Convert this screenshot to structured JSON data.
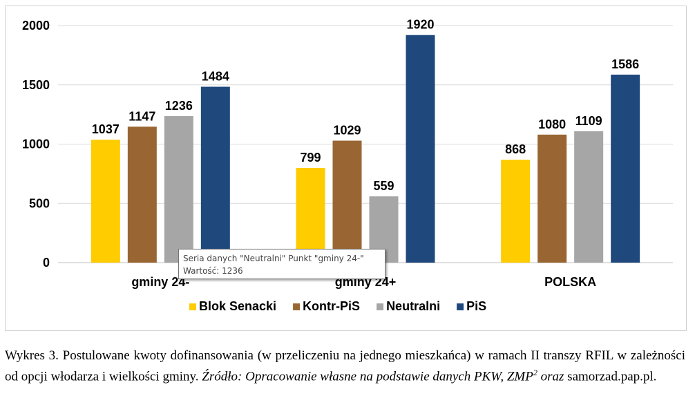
{
  "chart_data": {
    "type": "bar",
    "categories": [
      "gminy 24-",
      "gminy 24+",
      "POLSKA"
    ],
    "series": [
      {
        "name": "Blok Senacki",
        "values": [
          1037,
          799,
          868
        ],
        "color": "#FFCC00"
      },
      {
        "name": "Kontr-PiS",
        "values": [
          1147,
          1029,
          1080
        ],
        "color": "#996633"
      },
      {
        "name": "Neutralni",
        "values": [
          1236,
          559,
          1109
        ],
        "color": "#A6A6A6"
      },
      {
        "name": "PiS",
        "values": [
          1484,
          1920,
          1586
        ],
        "color": "#1F497D"
      }
    ],
    "yticks": [
      0,
      500,
      1000,
      1500,
      2000
    ],
    "ylim": [
      0,
      2000
    ],
    "grid": true,
    "legend_position": "bottom"
  },
  "tooltip": {
    "line1": "Seria danych \"Neutralni\" Punkt \"gminy 24-\"",
    "line2": "Wartość: 1236"
  },
  "caption": {
    "part1": "Wykres 3. Postulowane kwoty dofinansowania (w przeliczeniu na jednego mieszkańca) w ramach II transzy RFIL w zależności od opcji włodarza i wielkości gminy. ",
    "source_italic": "Źródło: Opracowanie własne na podstawie danych PKW, ZMP",
    "superscript": "2",
    "oraz": " oraz",
    "site": " samorzad.pap.pl."
  }
}
